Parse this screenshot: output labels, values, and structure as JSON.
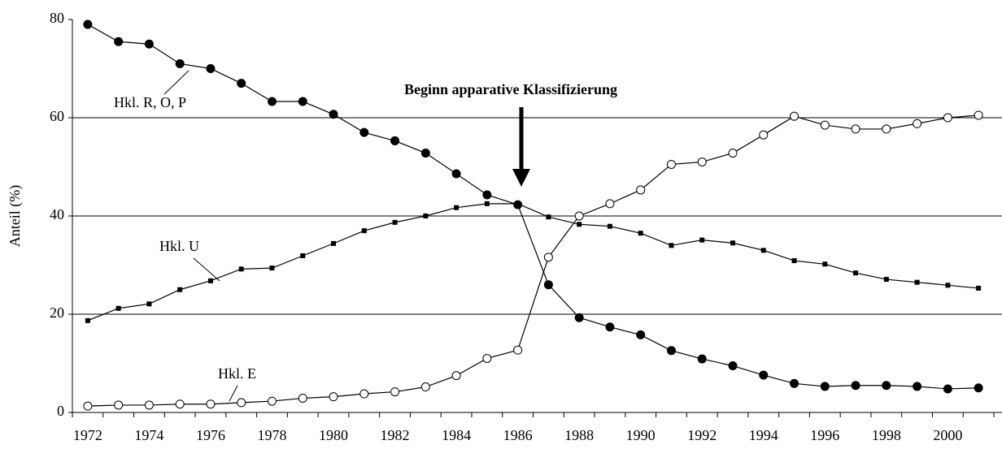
{
  "chart_data": {
    "type": "line",
    "y_label": "Anteil (%)",
    "annotation": "Beginn apparative Klassifizierung",
    "categories": [
      "1972",
      null,
      "1974",
      null,
      "1976",
      null,
      "1978",
      null,
      "1980",
      null,
      "1982",
      null,
      "1984",
      null,
      "1986",
      null,
      "1988",
      null,
      "1990",
      null,
      "1992",
      null,
      "1994",
      null,
      "1996",
      null,
      "1998",
      null,
      "2000",
      null
    ],
    "ylim": [
      0,
      80
    ],
    "yticks": [
      0,
      20,
      40,
      60,
      80
    ],
    "grid": true,
    "series": [
      {
        "name": "Hkl. R, O, P",
        "color": "#000000",
        "marker": "filled-circle",
        "values": [
          79,
          75.5,
          75,
          71,
          70,
          67,
          63.3,
          63.3,
          60.7,
          57,
          55.3,
          52.8,
          48.6,
          44.3,
          42.3,
          26,
          19.3,
          17.4,
          15.8,
          12.6,
          10.9,
          9.5,
          7.6,
          5.9,
          5.3,
          5.5,
          5.5,
          5.3,
          4.8,
          5
        ]
      },
      {
        "name": "Hkl. U",
        "color": "#000000",
        "marker": "square",
        "values": [
          18.7,
          21.2,
          22.1,
          25,
          26.8,
          29.2,
          29.4,
          31.9,
          34.4,
          37,
          38.7,
          40,
          41.7,
          42.5,
          42.5,
          39.8,
          38.3,
          37.9,
          36.5,
          34,
          35.1,
          34.5,
          33,
          30.9,
          30.2,
          28.4,
          27.1,
          26.5,
          25.9,
          25.3
        ]
      },
      {
        "name": "Hkl. E",
        "color": "#000000",
        "marker": "open-circle",
        "values": [
          1.3,
          1.5,
          1.5,
          1.7,
          1.7,
          2,
          2.3,
          2.9,
          3.2,
          3.8,
          4.2,
          5.2,
          7.5,
          11,
          12.7,
          31.6,
          40,
          42.5,
          45.3,
          50.5,
          51,
          52.8,
          56.5,
          60.3,
          58.5,
          57.7,
          57.7,
          58.8,
          60,
          60.5
        ]
      }
    ]
  }
}
